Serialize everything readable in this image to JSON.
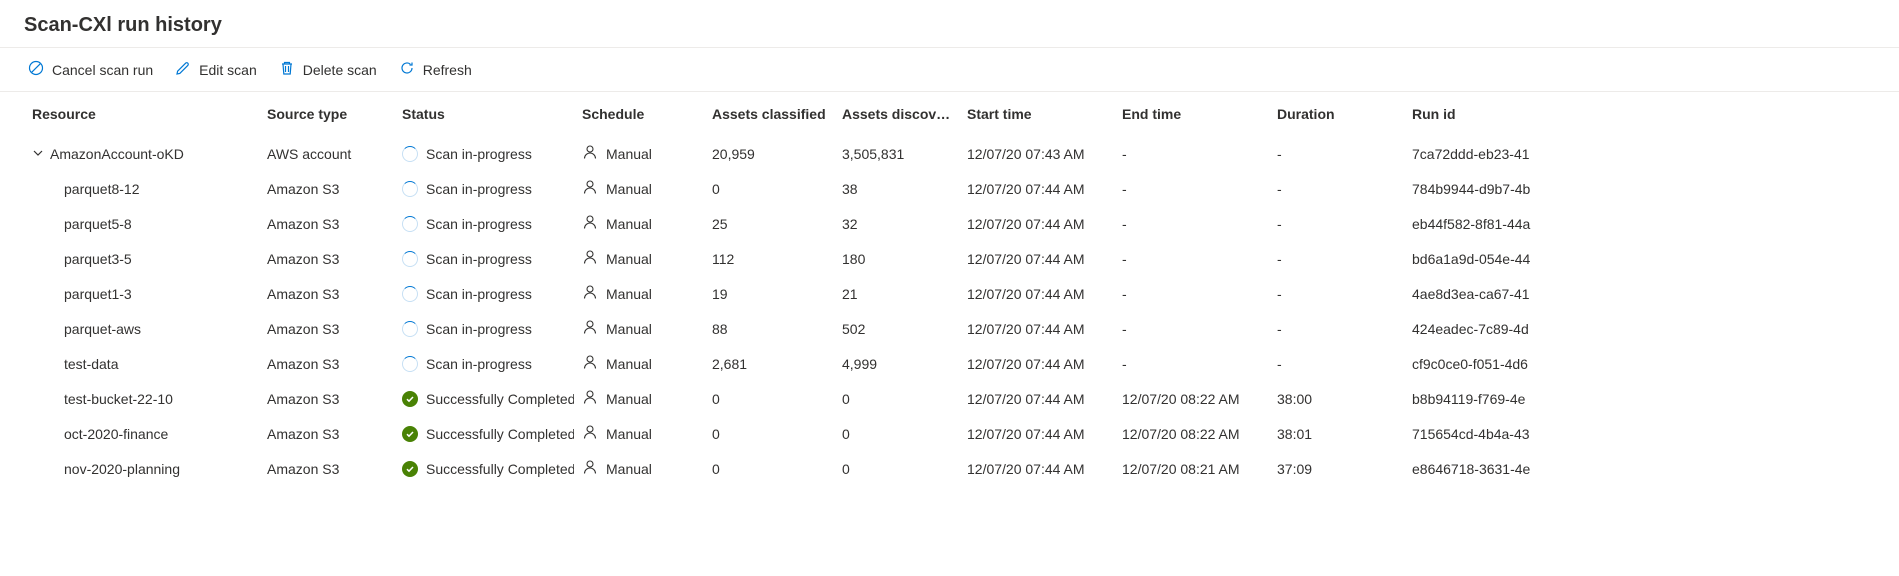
{
  "title": "Scan-CXl run history",
  "toolbar": {
    "cancel": "Cancel scan run",
    "edit": "Edit scan",
    "delete": "Delete scan",
    "refresh": "Refresh"
  },
  "icon_color": "#0078d4",
  "columns": {
    "resource": "Resource",
    "source_type": "Source type",
    "status": "Status",
    "schedule": "Schedule",
    "assets_classified": "Assets classified",
    "assets_discovered": "Assets discove…",
    "start_time": "Start time",
    "end_time": "End time",
    "duration": "Duration",
    "run_id": "Run id"
  },
  "status_labels": {
    "in_progress": "Scan in-progress",
    "completed": "Successfully Completed"
  },
  "schedule_label": "Manual",
  "rows": [
    {
      "resource": "AmazonAccount-oKD",
      "source": "AWS account",
      "status": "in_progress",
      "classified": "20,959",
      "discovered": "3,505,831",
      "start": "12/07/20 07:43 AM",
      "end": "-",
      "duration": "-",
      "runid": "7ca72ddd-eb23-41",
      "parent": true
    },
    {
      "resource": "parquet8-12",
      "source": "Amazon S3",
      "status": "in_progress",
      "classified": "0",
      "discovered": "38",
      "start": "12/07/20 07:44 AM",
      "end": "-",
      "duration": "-",
      "runid": "784b9944-d9b7-4b",
      "parent": false
    },
    {
      "resource": "parquet5-8",
      "source": "Amazon S3",
      "status": "in_progress",
      "classified": "25",
      "discovered": "32",
      "start": "12/07/20 07:44 AM",
      "end": "-",
      "duration": "-",
      "runid": "eb44f582-8f81-44a",
      "parent": false
    },
    {
      "resource": "parquet3-5",
      "source": "Amazon S3",
      "status": "in_progress",
      "classified": "112",
      "discovered": "180",
      "start": "12/07/20 07:44 AM",
      "end": "-",
      "duration": "-",
      "runid": "bd6a1a9d-054e-44",
      "parent": false
    },
    {
      "resource": "parquet1-3",
      "source": "Amazon S3",
      "status": "in_progress",
      "classified": "19",
      "discovered": "21",
      "start": "12/07/20 07:44 AM",
      "end": "-",
      "duration": "-",
      "runid": "4ae8d3ea-ca67-41",
      "parent": false
    },
    {
      "resource": "parquet-aws",
      "source": "Amazon S3",
      "status": "in_progress",
      "classified": "88",
      "discovered": "502",
      "start": "12/07/20 07:44 AM",
      "end": "-",
      "duration": "-",
      "runid": "424eadec-7c89-4d",
      "parent": false
    },
    {
      "resource": "test-data",
      "source": "Amazon S3",
      "status": "in_progress",
      "classified": "2,681",
      "discovered": "4,999",
      "start": "12/07/20 07:44 AM",
      "end": "-",
      "duration": "-",
      "runid": "cf9c0ce0-f051-4d6",
      "parent": false
    },
    {
      "resource": "test-bucket-22-10",
      "source": "Amazon S3",
      "status": "completed",
      "classified": "0",
      "discovered": "0",
      "start": "12/07/20 07:44 AM",
      "end": "12/07/20 08:22 AM",
      "duration": "38:00",
      "runid": "b8b94119-f769-4e",
      "parent": false
    },
    {
      "resource": "oct-2020-finance",
      "source": "Amazon S3",
      "status": "completed",
      "classified": "0",
      "discovered": "0",
      "start": "12/07/20 07:44 AM",
      "end": "12/07/20 08:22 AM",
      "duration": "38:01",
      "runid": "715654cd-4b4a-43",
      "parent": false
    },
    {
      "resource": "nov-2020-planning",
      "source": "Amazon S3",
      "status": "completed",
      "classified": "0",
      "discovered": "0",
      "start": "12/07/20 07:44 AM",
      "end": "12/07/20 08:21 AM",
      "duration": "37:09",
      "runid": "e8646718-3631-4e",
      "parent": false
    }
  ]
}
